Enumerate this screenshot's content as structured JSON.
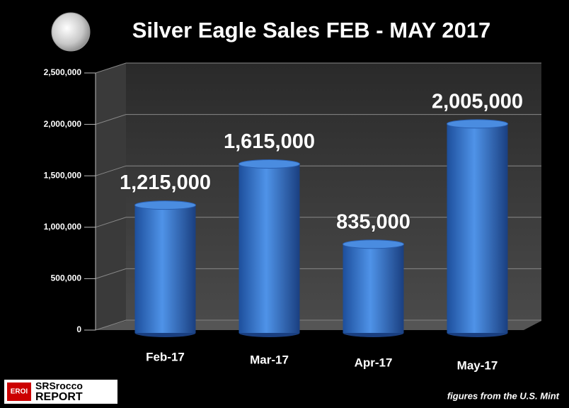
{
  "chart_data": {
    "type": "bar3d",
    "title": "Silver Eagle Sales FEB - MAY 2017",
    "categories": [
      "Feb-17",
      "Mar-17",
      "Apr-17",
      "May-17"
    ],
    "values": [
      1215000,
      1615000,
      835000,
      2005000
    ],
    "value_labels": [
      "1,215,000",
      "1,615,000",
      "835,000",
      "2,005,000"
    ],
    "color": "#3a78d0",
    "ylim": [
      0,
      2500000
    ],
    "yticks": [
      0,
      {
        "value": 500000,
        "label": "500,000"
      },
      {
        "value": 1000000,
        "label": "1,000,000"
      },
      {
        "value": 1500000,
        "label": "1,500,000"
      },
      {
        "value": 2000000,
        "label": "2,000,000"
      },
      {
        "value": 2500000,
        "label": "2,500,000"
      }
    ],
    "grid": true,
    "source": "figures from the U.S. Mint",
    "logo": {
      "badge": "EROI",
      "name": "SRSrocco",
      "sub": "REPORT"
    }
  }
}
